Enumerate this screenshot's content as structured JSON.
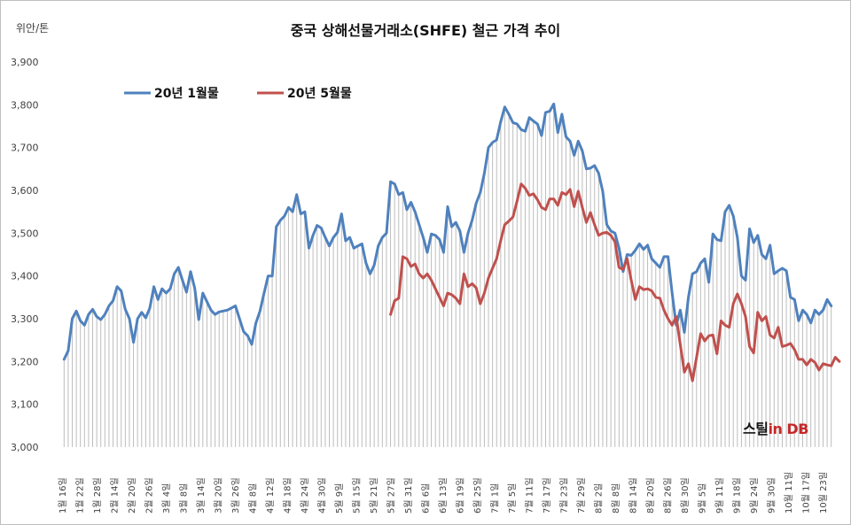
{
  "chart_data": {
    "type": "line",
    "title": "중국 상해선물거래소(SHFE)  철근 가격 추이",
    "unit_label": "위안/톤",
    "ylim": [
      3000,
      3900
    ],
    "y_ticks": [
      "3,000",
      "3,100",
      "3,200",
      "3,300",
      "3,400",
      "3,500",
      "3,600",
      "3,700",
      "3,800",
      "3,900"
    ],
    "y_tick_values": [
      3000,
      3100,
      3200,
      3300,
      3400,
      3500,
      3600,
      3700,
      3800,
      3900
    ],
    "grid": "vertical-lines-per-date",
    "legend_position": "top-left",
    "x_tick_labels": [
      "1월 16일",
      "1월 22일",
      "1월 28일",
      "2월 14일",
      "2월 20일",
      "2월 26일",
      "3월 4일",
      "3월 8일",
      "3월 14일",
      "3월 20일",
      "3월 26일",
      "4월 8일",
      "4월 12일",
      "4월 18일",
      "4월 24일",
      "4월 30일",
      "5월 9일",
      "5월 15일",
      "5월 21일",
      "5월 27일",
      "5월 31일",
      "6월 6일",
      "6월 13일",
      "6월 19일",
      "6월 25일",
      "7월 1일",
      "7월 5일",
      "7월 11일",
      "7월 17일",
      "7월 23일",
      "7월 29일",
      "8월 2일",
      "8월 8일",
      "8월 14일",
      "8월 20일",
      "8월 26일",
      "8월 30일",
      "9월 5일",
      "9월 11일",
      "9월 18일",
      "9월 24일",
      "9월 30일",
      "10월 11일",
      "10월 17일",
      "10월 23일"
    ],
    "series": [
      {
        "name": "20년 1월물",
        "color": "#4f81bd",
        "start_index": 0,
        "values": [
          3205,
          3225,
          3300,
          3318,
          3295,
          3285,
          3310,
          3322,
          3305,
          3298,
          3310,
          3330,
          3342,
          3375,
          3365,
          3322,
          3300,
          3245,
          3300,
          3315,
          3302,
          3325,
          3375,
          3345,
          3370,
          3360,
          3370,
          3405,
          3420,
          3390,
          3362,
          3410,
          3372,
          3298,
          3360,
          3340,
          3320,
          3310,
          3316,
          3318,
          3320,
          3325,
          3330,
          3300,
          3270,
          3260,
          3240,
          3290,
          3318,
          3360,
          3400,
          3400,
          3515,
          3530,
          3540,
          3560,
          3550,
          3590,
          3545,
          3550,
          3465,
          3495,
          3518,
          3512,
          3490,
          3470,
          3490,
          3502,
          3545,
          3482,
          3490,
          3465,
          3470,
          3475,
          3430,
          3405,
          3425,
          3470,
          3490,
          3500,
          3620,
          3615,
          3590,
          3595,
          3555,
          3572,
          3550,
          3520,
          3490,
          3455,
          3498,
          3495,
          3485,
          3455,
          3562,
          3515,
          3525,
          3505,
          3455,
          3500,
          3530,
          3570,
          3595,
          3640,
          3700,
          3712,
          3718,
          3760,
          3795,
          3778,
          3758,
          3755,
          3742,
          3738,
          3770,
          3762,
          3755,
          3728,
          3782,
          3785,
          3802,
          3735,
          3778,
          3725,
          3715,
          3682,
          3715,
          3692,
          3650,
          3652,
          3658,
          3640,
          3598,
          3520,
          3505,
          3500,
          3465,
          3410,
          3450,
          3448,
          3460,
          3475,
          3462,
          3472,
          3440,
          3430,
          3420,
          3445,
          3445,
          3360,
          3285,
          3320,
          3268,
          3350,
          3405,
          3410,
          3430,
          3440,
          3385,
          3498,
          3485,
          3482,
          3550,
          3565,
          3540,
          3490,
          3400,
          3390,
          3510,
          3478,
          3495,
          3450,
          3440,
          3472,
          3405,
          3412,
          3418,
          3412,
          3350,
          3345,
          3295,
          3320,
          3310,
          3290,
          3320,
          3310,
          3320,
          3345,
          3330
        ]
      },
      {
        "name": "20년 5월물",
        "color": "#c0504d",
        "start_index": 80,
        "values": [
          3310,
          3342,
          3348,
          3445,
          3440,
          3422,
          3428,
          3405,
          3395,
          3405,
          3390,
          3370,
          3350,
          3330,
          3360,
          3356,
          3348,
          3335,
          3405,
          3375,
          3382,
          3372,
          3335,
          3360,
          3395,
          3418,
          3440,
          3482,
          3520,
          3528,
          3538,
          3575,
          3615,
          3605,
          3588,
          3592,
          3578,
          3560,
          3555,
          3580,
          3580,
          3565,
          3595,
          3590,
          3602,
          3562,
          3598,
          3560,
          3525,
          3548,
          3520,
          3495,
          3500,
          3502,
          3495,
          3480,
          3420,
          3415,
          3440,
          3390,
          3345,
          3375,
          3368,
          3370,
          3365,
          3350,
          3348,
          3320,
          3300,
          3285,
          3305,
          3240,
          3175,
          3195,
          3155,
          3210,
          3265,
          3248,
          3260,
          3262,
          3218,
          3295,
          3285,
          3280,
          3335,
          3358,
          3335,
          3305,
          3235,
          3220,
          3315,
          3295,
          3305,
          3262,
          3255,
          3280,
          3235,
          3238,
          3242,
          3228,
          3205,
          3205,
          3192,
          3205,
          3198,
          3180,
          3195,
          3192,
          3190,
          3210,
          3200
        ]
      }
    ]
  },
  "logo": {
    "text_prefix": "스틸",
    "text_in": "in",
    "text_db": "DB"
  }
}
